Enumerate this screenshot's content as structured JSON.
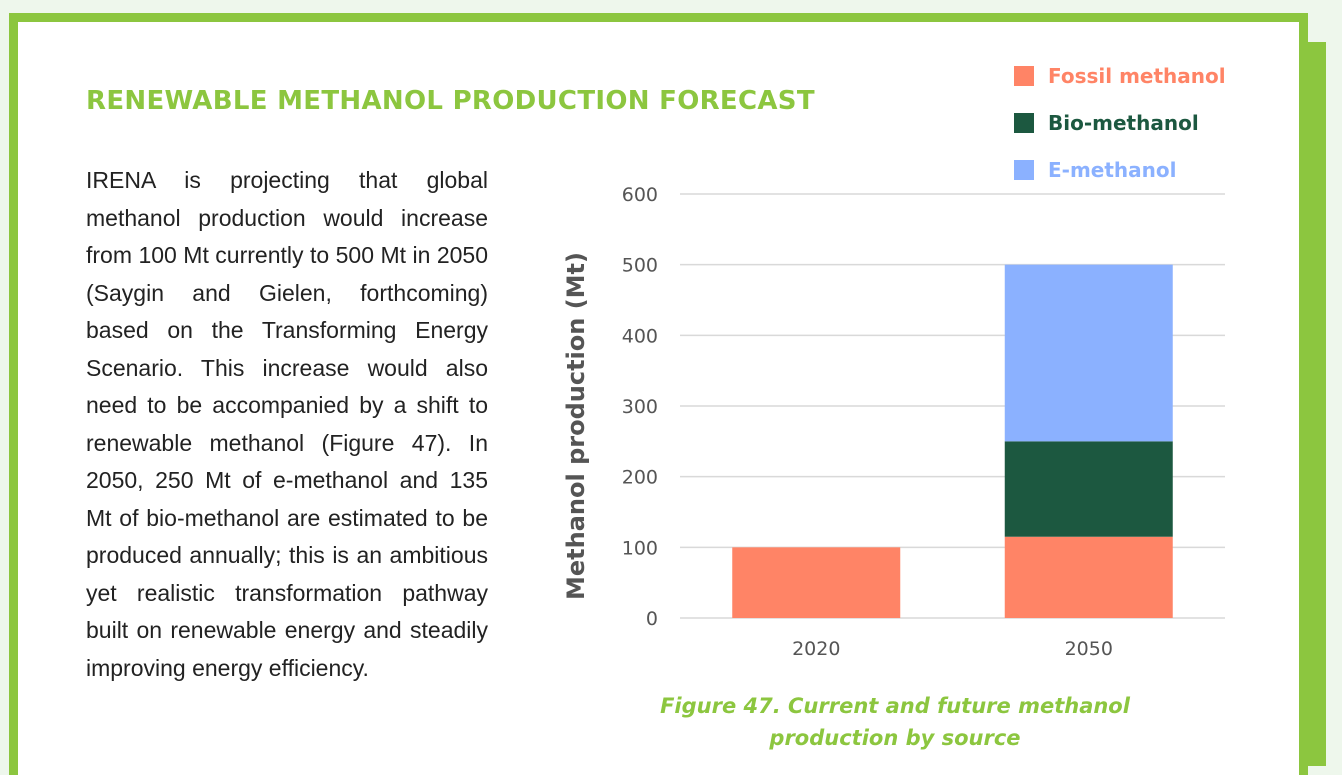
{
  "heading": "RENEWABLE METHANOL PRODUCTION FORECAST",
  "body_text": "IRENA is projecting that global methanol production would increase from 100 Mt currently to 500 Mt in 2050 (Saygin and Gielen, forthcoming) based on the Transforming Energy Scenario. This increase would also need to be accompanied by a shift to renewable methanol (Figure 47). In 2050, 250 Mt of e-methanol and 135 Mt of bio-methanol are estimated to be produced annually; this is an ambitious yet realistic transformation pathway built on renewable energy and steadily improving energy efficiency.",
  "colors": {
    "accent": "#8cc63f",
    "text": "#222222",
    "axis_text": "#555555"
  },
  "chart_data": {
    "type": "bar",
    "stacked": true,
    "categories": [
      "2020",
      "2050"
    ],
    "series": [
      {
        "name": "Fossil methanol",
        "color": "#ff8466",
        "values": [
          100,
          115
        ]
      },
      {
        "name": "Bio-methanol",
        "color": "#1c5840",
        "values": [
          0,
          135
        ]
      },
      {
        "name": "E-methanol",
        "color": "#8bb1ff",
        "values": [
          0,
          250
        ]
      }
    ],
    "yticks": [
      "0",
      "100",
      "200",
      "300",
      "400",
      "500",
      "600"
    ],
    "ylim": [
      0,
      600
    ],
    "ylabel": "Methanol production (Mt)",
    "xlabel": "",
    "grid": true,
    "legend_position": "top-right",
    "caption": "Figure 47. Current and future methanol production by source"
  }
}
